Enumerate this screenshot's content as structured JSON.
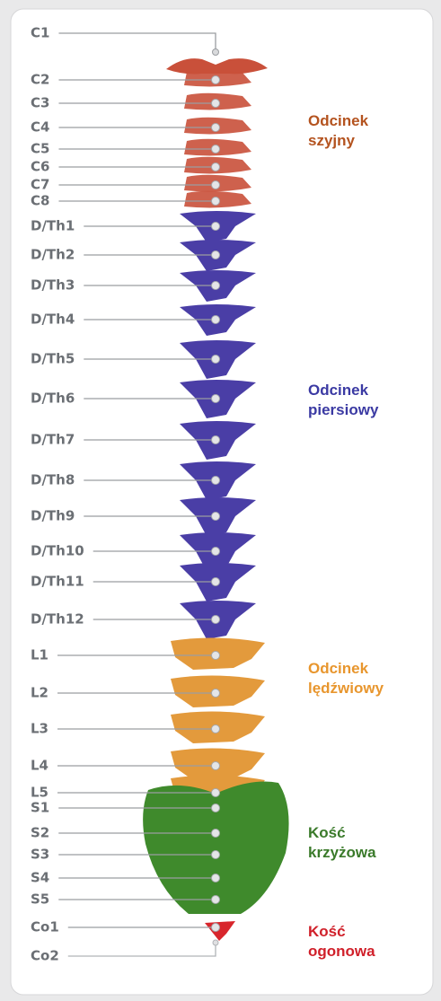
{
  "vertebrae": [
    "C1",
    "C2",
    "C3",
    "C4",
    "C5",
    "C6",
    "C7",
    "C8",
    "D/Th1",
    "D/Th2",
    "D/Th3",
    "D/Th4",
    "D/Th5",
    "D/Th6",
    "D/Th7",
    "D/Th8",
    "D/Th9",
    "D/Th10",
    "D/Th11",
    "D/Th12",
    "L1",
    "L2",
    "L3",
    "L4",
    "L5",
    "S1",
    "S2",
    "S3",
    "S4",
    "S5",
    "Co1",
    "Co2"
  ],
  "regions": [
    {
      "line1": "Odcinek",
      "line2": "szyjny"
    },
    {
      "line1": "Odcinek",
      "line2": "piersiowy"
    },
    {
      "line1": "Odcinek",
      "line2": "lędźwiowy"
    },
    {
      "line1": "Kość",
      "line2": "krzyżowa"
    },
    {
      "line1": "Kość",
      "line2": "ogonowa"
    }
  ]
}
